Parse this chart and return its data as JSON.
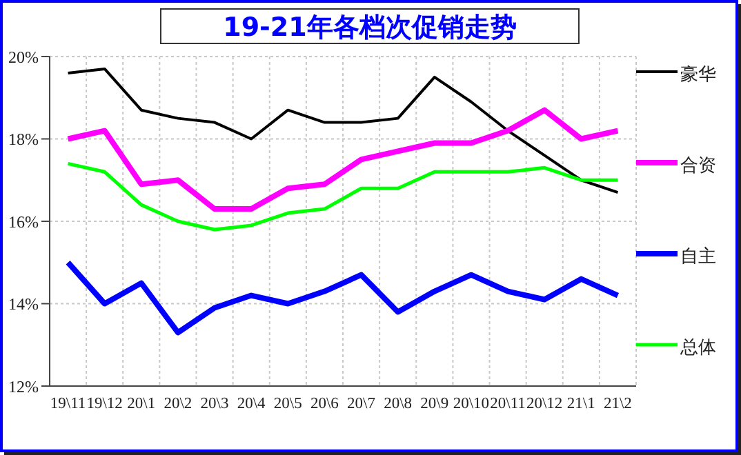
{
  "chart_data": {
    "type": "line",
    "title": "19-21年各档次促销走势",
    "categories": [
      "19\\11",
      "19\\12",
      "20\\1",
      "20\\2",
      "20\\3",
      "20\\4",
      "20\\5",
      "20\\6",
      "20\\7",
      "20\\8",
      "20\\9",
      "20\\10",
      "20\\11",
      "20\\12",
      "21\\1",
      "21\\2"
    ],
    "series": [
      {
        "name": "豪华",
        "color": "#000000",
        "values": [
          19.6,
          19.7,
          18.7,
          18.5,
          18.4,
          18.0,
          18.7,
          18.4,
          18.4,
          18.5,
          19.5,
          18.9,
          18.2,
          17.6,
          17.0,
          16.7
        ]
      },
      {
        "name": "合资",
        "color": "#ff00ff",
        "values": [
          18.0,
          18.2,
          16.9,
          17.0,
          16.3,
          16.3,
          16.8,
          16.9,
          17.5,
          17.7,
          17.9,
          17.9,
          18.2,
          18.7,
          18.0,
          18.2
        ]
      },
      {
        "name": "自主",
        "color": "#0000ff",
        "values": [
          15.0,
          14.0,
          14.5,
          13.3,
          13.9,
          14.2,
          14.0,
          14.3,
          14.7,
          13.8,
          14.3,
          14.7,
          14.3,
          14.1,
          14.6,
          14.2
        ]
      },
      {
        "name": "总体",
        "color": "#00ff00",
        "values": [
          17.4,
          17.2,
          16.4,
          16.0,
          15.8,
          15.9,
          16.2,
          16.3,
          16.8,
          16.8,
          17.2,
          17.2,
          17.2,
          17.3,
          17.0,
          17.0
        ]
      }
    ],
    "ylim": [
      12,
      20
    ],
    "yticks": [
      {
        "value": 12,
        "label": "12%"
      },
      {
        "value": 14,
        "label": "14%"
      },
      {
        "value": 16,
        "label": "16%"
      },
      {
        "value": 18,
        "label": "18%"
      },
      {
        "value": 20,
        "label": "20%"
      }
    ],
    "grid": true,
    "legend": "right",
    "marker": "none",
    "line_style": "solid"
  }
}
